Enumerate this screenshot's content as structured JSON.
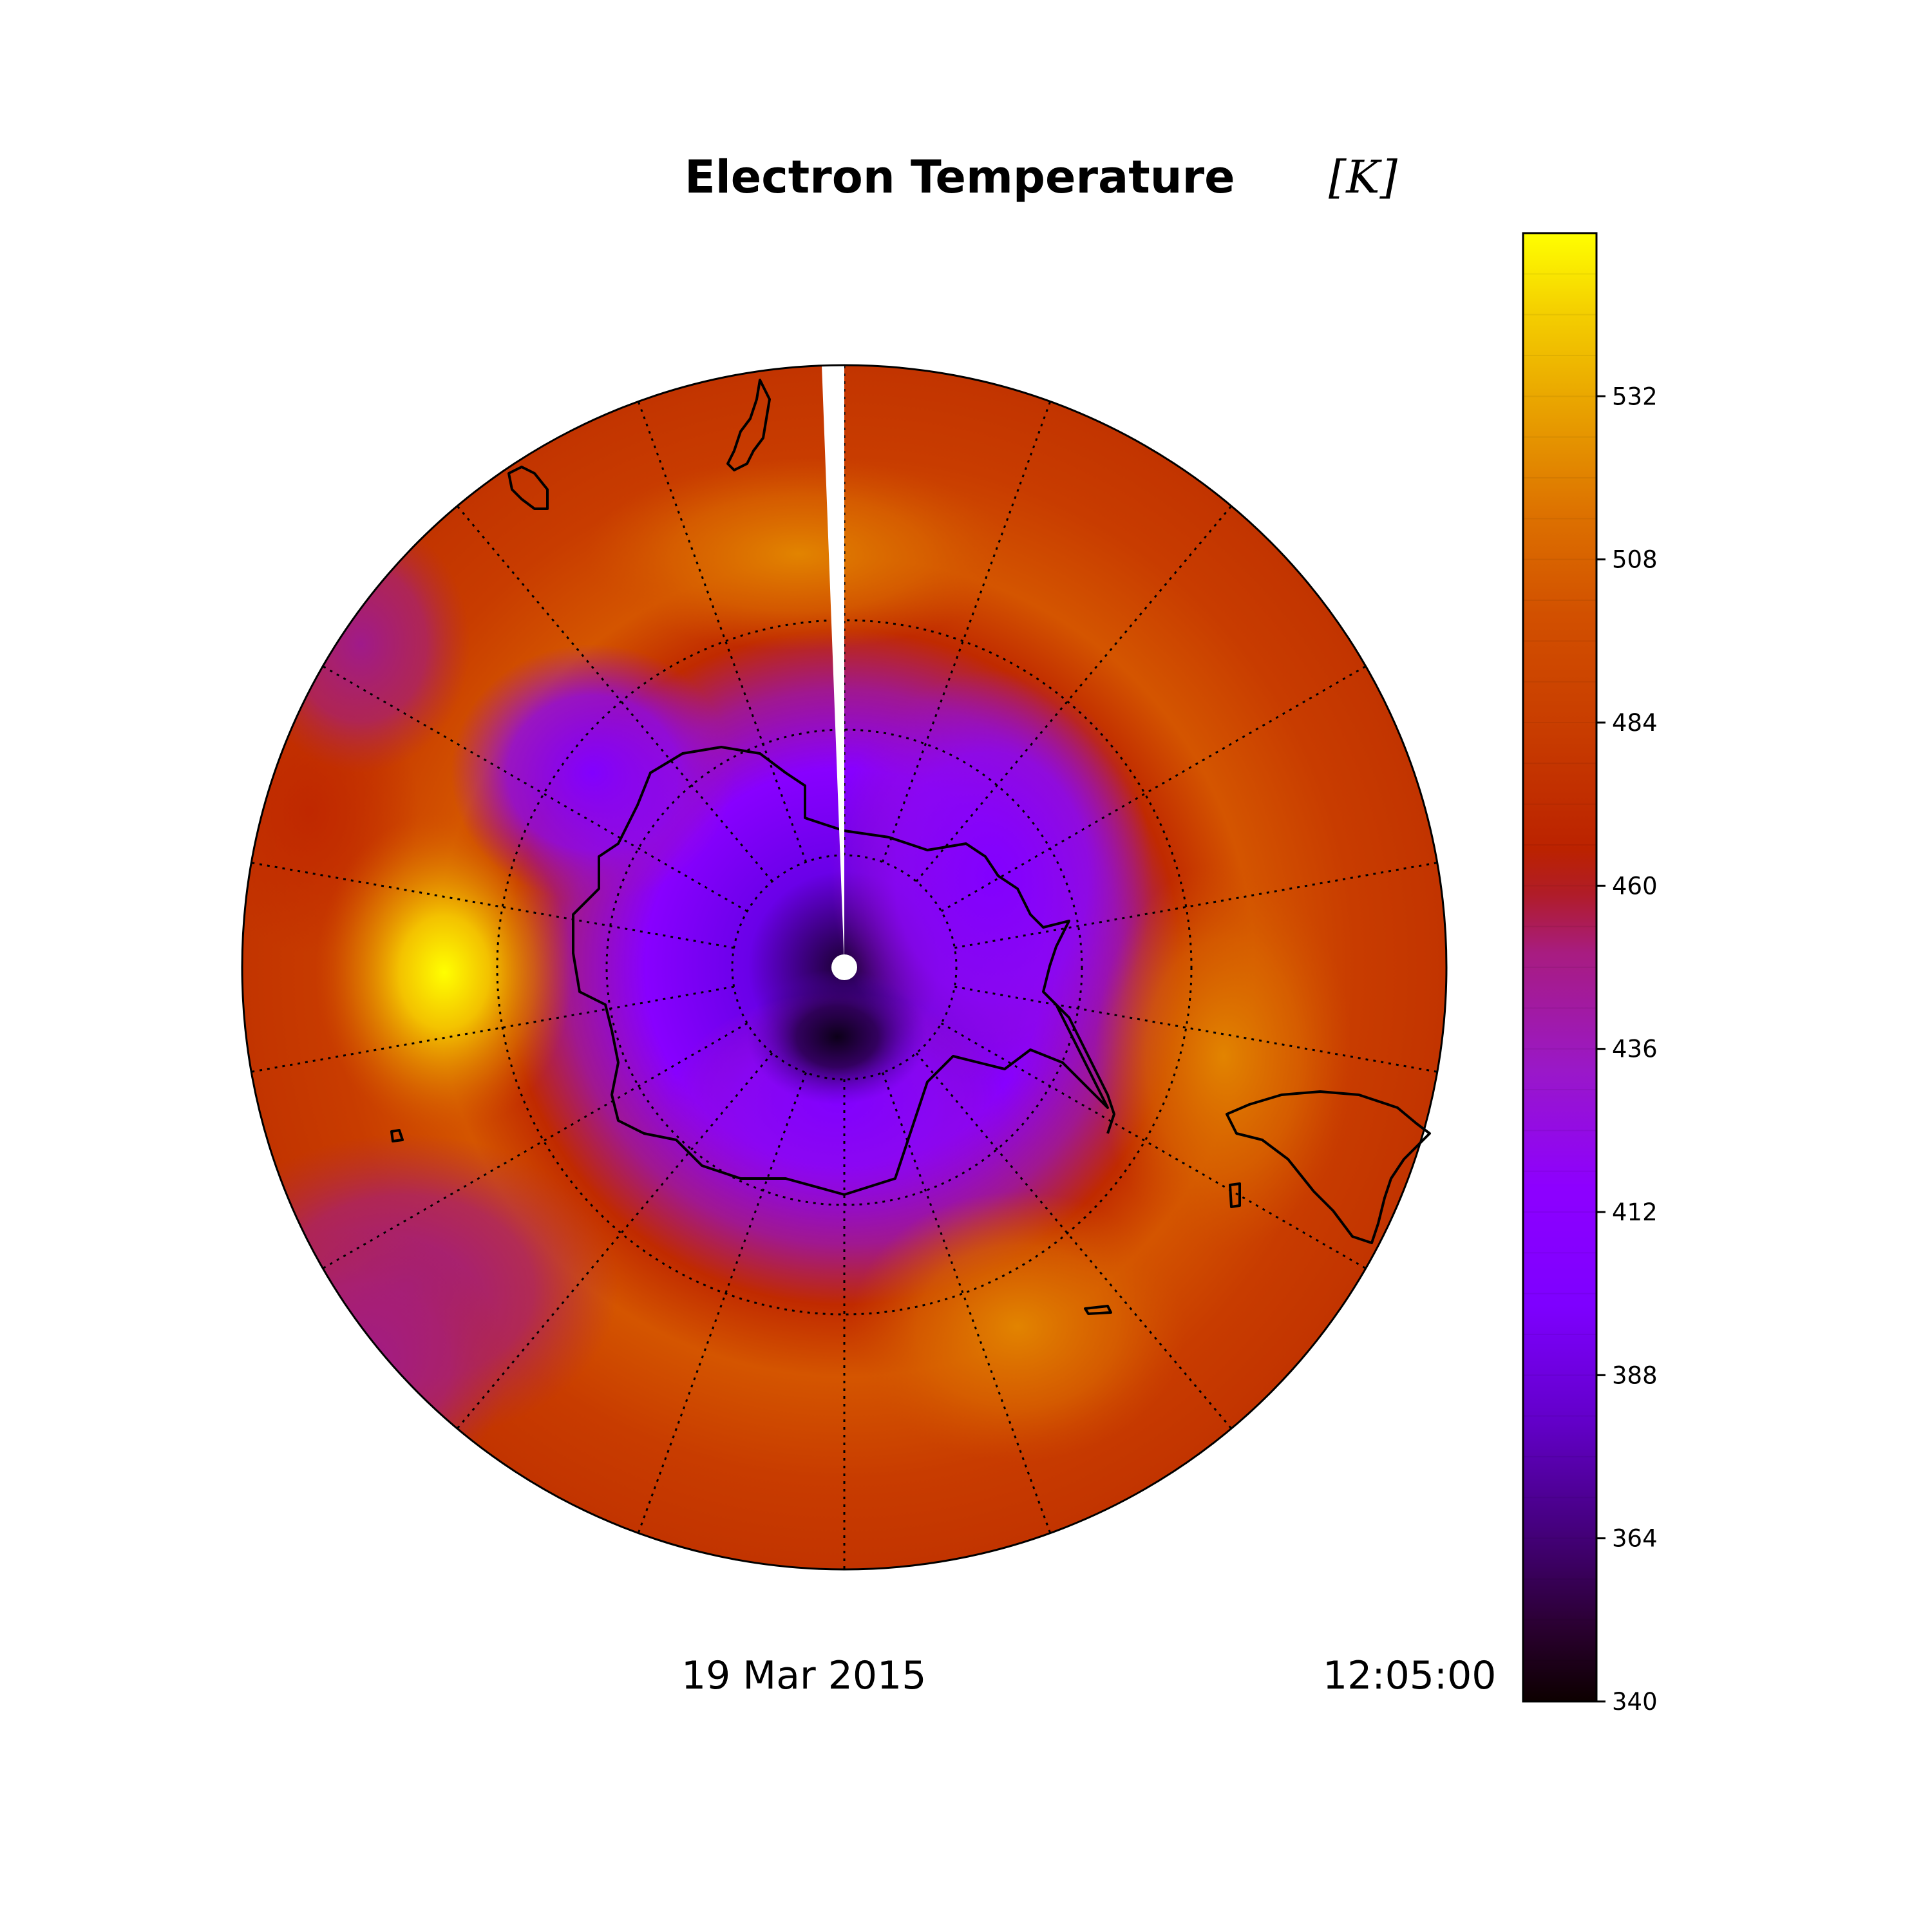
{
  "title": "Electron Temperature",
  "units": "[K]",
  "date": "19 Mar 2015",
  "time": "12:05:00",
  "colormap": "gnuplot",
  "projection": "south-polar-stereographic",
  "colorbar": {
    "min": 340,
    "max": 556,
    "ticks": [
      340,
      364,
      388,
      412,
      436,
      460,
      484,
      508,
      532
    ],
    "tick_labels": [
      "340",
      "364",
      "388",
      "412",
      "436",
      "460",
      "484",
      "508",
      "532"
    ]
  },
  "map_features": {
    "graticule": "dotted",
    "meridian_count": 18,
    "parallel_circles": 3,
    "coastlines": [
      "Antarctica",
      "New Zealand",
      "Tasmania",
      "South America",
      "Falkland Islands"
    ]
  },
  "chart_data": {
    "type": "heatmap",
    "title": "Electron Temperature",
    "value_range": [
      340,
      556
    ],
    "features": [
      {
        "region": "polar-center",
        "value": 345
      },
      {
        "region": "inner-ring",
        "value": 395
      },
      {
        "region": "oval-east",
        "value": 408
      },
      {
        "region": "oval-west",
        "value": 400
      },
      {
        "region": "hotspot-west",
        "value": 548
      },
      {
        "region": "hotspot-north",
        "value": 510
      },
      {
        "region": "hotspot-southeast",
        "value": 500
      },
      {
        "region": "outer-ring",
        "value": 470
      },
      {
        "region": "magenta-northwest",
        "value": 430
      },
      {
        "region": "magenta-southwest",
        "value": 425
      }
    ]
  }
}
